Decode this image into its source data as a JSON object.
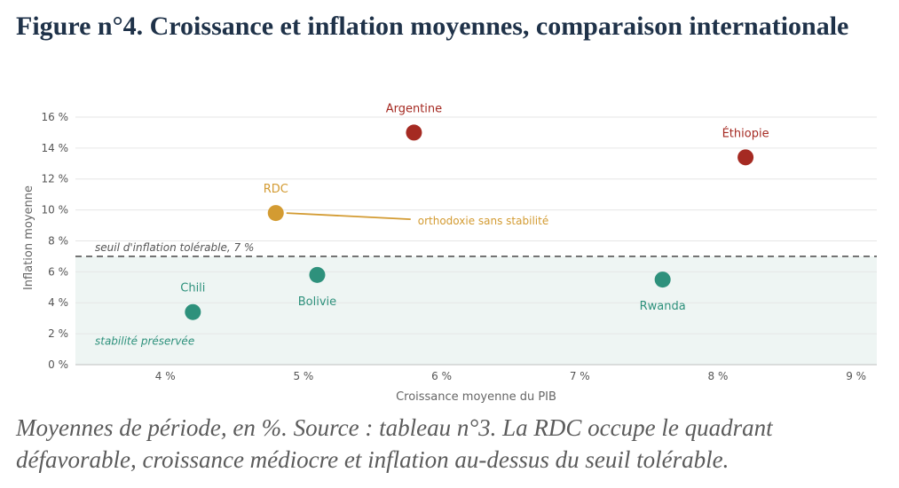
{
  "figure": {
    "title": "Figure n°4. Croissance et inflation moyennes, comparaison internationale",
    "caption": "Moyennes de période, en %. Source : tableau n°3. La RDC occupe le quadrant défavorable, croissance médiocre et inflation au-dessus du seuil tolérable."
  },
  "chart_data": {
    "type": "scatter",
    "title": "",
    "xlabel": "Croissance moyenne du PIB",
    "ylabel": "Inflation moyenne",
    "xlim": [
      3.35,
      9.15
    ],
    "ylim": [
      0,
      16.4
    ],
    "x_ticks": [
      4,
      5,
      6,
      7,
      8,
      9
    ],
    "x_tick_labels": [
      "4 %",
      "5 %",
      "6 %",
      "7 %",
      "8 %",
      "9 %"
    ],
    "y_ticks": [
      0,
      2,
      4,
      6,
      8,
      10,
      12,
      14,
      16
    ],
    "y_tick_labels": [
      "0 %",
      "2 %",
      "4 %",
      "6 %",
      "8 %",
      "10 %",
      "12 %",
      "14 %",
      "16 %"
    ],
    "grid": "horizontal",
    "colors": {
      "stable": "#2e917c",
      "high_inflation": "#a52a22",
      "highlight": "#d39b32",
      "threshold_line": "#555555",
      "stable_zone": "#eef5f3"
    },
    "threshold": {
      "y": 7,
      "label": "seuil d'inflation tolérable, 7 %"
    },
    "zone_label": "stabilité préservée",
    "points": [
      {
        "name": "Chili",
        "x": 4.2,
        "y": 3.4,
        "group": "stable",
        "label_pos": "above"
      },
      {
        "name": "Bolivie",
        "x": 5.1,
        "y": 5.8,
        "group": "stable",
        "label_pos": "below"
      },
      {
        "name": "Rwanda",
        "x": 7.6,
        "y": 5.5,
        "group": "stable",
        "label_pos": "below"
      },
      {
        "name": "RDC",
        "x": 4.8,
        "y": 9.8,
        "group": "highlight",
        "label_pos": "above"
      },
      {
        "name": "Argentine",
        "x": 5.8,
        "y": 15.0,
        "group": "high_inflation",
        "label_pos": "above"
      },
      {
        "name": "Éthiopie",
        "x": 8.2,
        "y": 13.4,
        "group": "high_inflation",
        "label_pos": "above"
      }
    ],
    "annotation": {
      "text": "orthodoxie sans stabilité",
      "target": "RDC"
    }
  }
}
